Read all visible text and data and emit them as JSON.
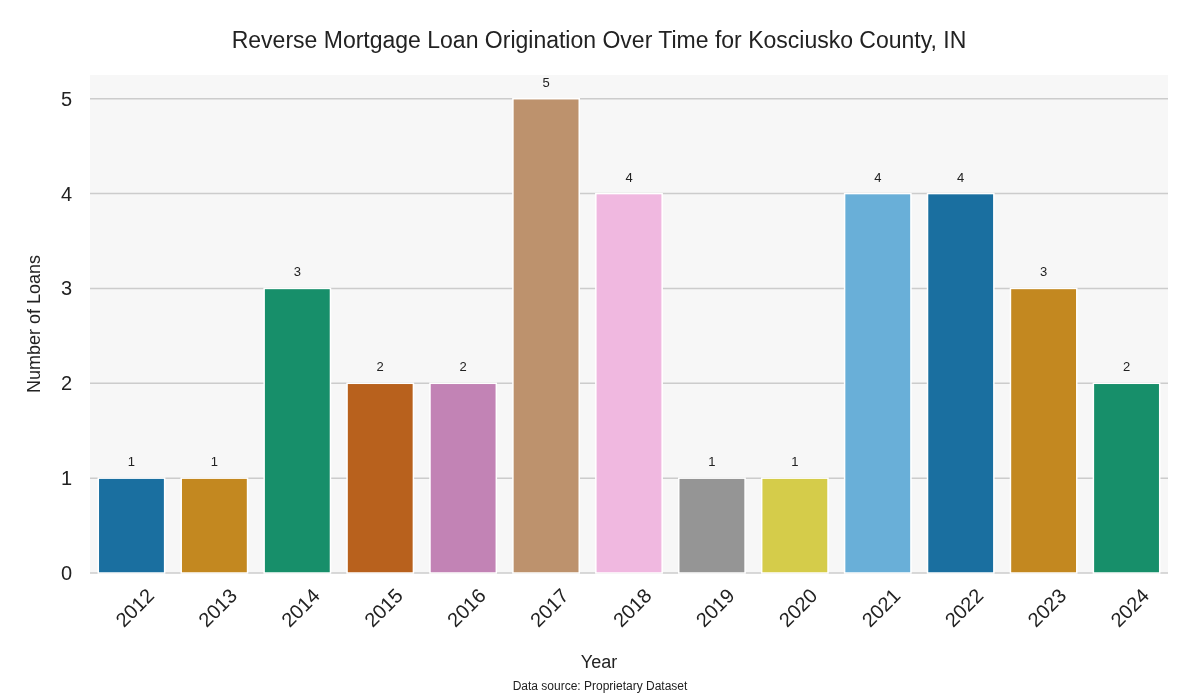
{
  "chart_data": {
    "type": "bar",
    "title": "Reverse Mortgage Loan Origination Over Time for Kosciusko County, IN",
    "xlabel": "Year",
    "ylabel": "Number of Loans",
    "categories": [
      "2012",
      "2013",
      "2014",
      "2015",
      "2016",
      "2017",
      "2018",
      "2019",
      "2020",
      "2021",
      "2022",
      "2023",
      "2024"
    ],
    "values": [
      1,
      1,
      3,
      2,
      2,
      5,
      4,
      1,
      1,
      4,
      4,
      3,
      2
    ],
    "colors": [
      "#1a6fa0",
      "#c38820",
      "#178f6a",
      "#b8611d",
      "#c283b5",
      "#bd926d",
      "#f0b8e0",
      "#959595",
      "#d5cc4a",
      "#69afd8",
      "#1a6fa0",
      "#c38820",
      "#178f6a"
    ],
    "ylim": [
      0,
      5.25
    ],
    "yticks": [
      0,
      1,
      2,
      3,
      4,
      5
    ],
    "grid": "y",
    "data_labels": true,
    "annotations": [
      "Data source: Proprietary Dataset"
    ]
  }
}
